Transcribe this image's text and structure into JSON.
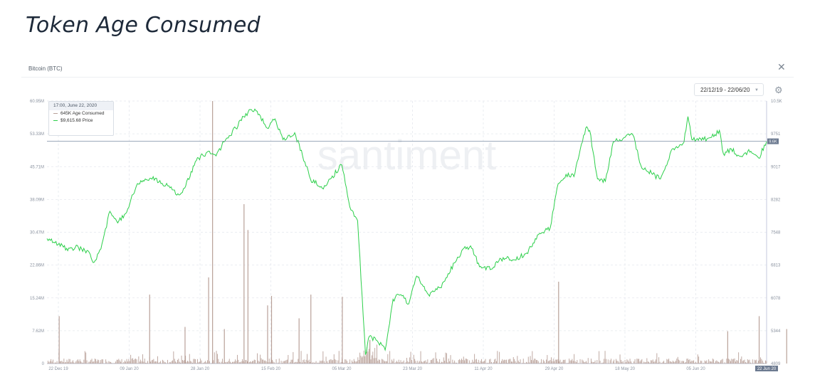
{
  "page": {
    "title": "Token Age Consumed",
    "asset": "Bitcoin (BTC)",
    "date_range": "22/12/19 - 22/06/20",
    "watermark": "santiment"
  },
  "icons": {
    "close": "close-icon",
    "gear": "gear-icon",
    "chevron": "chevron-down-icon"
  },
  "colors": {
    "price": "#2ccf4a",
    "age_consumed": "#b9a199",
    "axis": "#b8becc",
    "grid": "#e5e8ee",
    "crosshair": "#7d8ea6"
  },
  "tooltip": {
    "date": "17:00, June 22, 2020",
    "rows": [
      {
        "value": "645K",
        "label": "Age Consumed",
        "color": "#b9a199"
      },
      {
        "value": "$9,615.68",
        "label": "Price",
        "color": "#2ccf4a"
      }
    ]
  },
  "chart_data": {
    "type": "bar+line",
    "x_tick_labels": [
      "22 Dec 19",
      "09 Jan 20",
      "28 Jan 20",
      "15 Feb 20",
      "05 Mar 20",
      "23 Mar 20",
      "11 Apr 20",
      "29 Apr 20",
      "18 May 20",
      "05 Jun 20",
      "22 Jun 20"
    ],
    "y_left_tick_labels": [
      "0",
      "7.62M",
      "15.24M",
      "22.86M",
      "30.47M",
      "38.09M",
      "45.71M",
      "53.33M",
      "60.95M"
    ],
    "y_right_tick_labels": [
      "4809",
      "5344",
      "6078",
      "6813",
      "7548",
      "8282",
      "9017",
      "9751",
      "10.5K"
    ],
    "y_left_range": [
      0,
      60950000
    ],
    "y_right_range": [
      4809,
      10486
    ],
    "crosshair_price_label": "9.6K",
    "series": [
      {
        "name": "Age Consumed",
        "axis": "left",
        "kind": "bars",
        "spikes": [
          {
            "date": "2019-12-25",
            "value": 11000000
          },
          {
            "date": "2020-01-17",
            "value": 16000000
          },
          {
            "date": "2020-01-26",
            "value": 8500000
          },
          {
            "date": "2020-02-01",
            "value": 20000000
          },
          {
            "date": "2020-02-02",
            "value": 62000000
          },
          {
            "date": "2020-02-05",
            "value": 8000000
          },
          {
            "date": "2020-02-10",
            "value": 37000000
          },
          {
            "date": "2020-02-11",
            "value": 31000000
          },
          {
            "date": "2020-02-16",
            "value": 13500000
          },
          {
            "date": "2020-02-17",
            "value": 15700000
          },
          {
            "date": "2020-02-24",
            "value": 10500000
          },
          {
            "date": "2020-02-27",
            "value": 16000000
          },
          {
            "date": "2020-03-06",
            "value": 15500000
          },
          {
            "date": "2020-03-13",
            "value": 5500000
          },
          {
            "date": "2020-04-30",
            "value": 19000000
          },
          {
            "date": "2020-06-12",
            "value": 7500000
          },
          {
            "date": "2020-06-20",
            "value": 11000000
          },
          {
            "date": "2020-06-27",
            "value": 8000000
          }
        ]
      },
      {
        "name": "Price",
        "axis": "right",
        "kind": "line",
        "points": [
          [
            "2019-12-22",
            7510
          ],
          [
            "2019-12-24",
            7420
          ],
          [
            "2019-12-27",
            7300
          ],
          [
            "2019-12-30",
            7320
          ],
          [
            "2020-01-02",
            7170
          ],
          [
            "2020-01-03",
            7000
          ],
          [
            "2020-01-05",
            7400
          ],
          [
            "2020-01-07",
            8100
          ],
          [
            "2020-01-09",
            7850
          ],
          [
            "2020-01-11",
            8050
          ],
          [
            "2020-01-14",
            8700
          ],
          [
            "2020-01-16",
            8800
          ],
          [
            "2020-01-18",
            8850
          ],
          [
            "2020-01-20",
            8700
          ],
          [
            "2020-01-22",
            8650
          ],
          [
            "2020-01-24",
            8450
          ],
          [
            "2020-01-26",
            8600
          ],
          [
            "2020-01-29",
            9200
          ],
          [
            "2020-02-01",
            9400
          ],
          [
            "2020-02-03",
            9300
          ],
          [
            "2020-02-05",
            9600
          ],
          [
            "2020-02-08",
            9900
          ],
          [
            "2020-02-10",
            10150
          ],
          [
            "2020-02-12",
            10300
          ],
          [
            "2020-02-14",
            10200
          ],
          [
            "2020-02-16",
            9900
          ],
          [
            "2020-02-18",
            10100
          ],
          [
            "2020-02-20",
            9650
          ],
          [
            "2020-02-23",
            9800
          ],
          [
            "2020-02-25",
            9300
          ],
          [
            "2020-02-27",
            8800
          ],
          [
            "2020-03-01",
            8600
          ],
          [
            "2020-03-03",
            8800
          ],
          [
            "2020-03-06",
            9100
          ],
          [
            "2020-03-08",
            8200
          ],
          [
            "2020-03-10",
            7900
          ],
          [
            "2020-03-12",
            5000
          ],
          [
            "2020-03-13",
            5400
          ],
          [
            "2020-03-15",
            5300
          ],
          [
            "2020-03-17",
            5100
          ],
          [
            "2020-03-19",
            6200
          ],
          [
            "2020-03-21",
            6300
          ],
          [
            "2020-03-23",
            6100
          ],
          [
            "2020-03-25",
            6700
          ],
          [
            "2020-03-28",
            6300
          ],
          [
            "2020-03-31",
            6450
          ],
          [
            "2020-04-02",
            6750
          ],
          [
            "2020-04-06",
            7300
          ],
          [
            "2020-04-08",
            7300
          ],
          [
            "2020-04-10",
            6900
          ],
          [
            "2020-04-13",
            6850
          ],
          [
            "2020-04-16",
            7100
          ],
          [
            "2020-04-19",
            7050
          ],
          [
            "2020-04-22",
            7200
          ],
          [
            "2020-04-25",
            7600
          ],
          [
            "2020-04-28",
            7750
          ],
          [
            "2020-04-30",
            8700
          ],
          [
            "2020-05-02",
            8900
          ],
          [
            "2020-05-04",
            8850
          ],
          [
            "2020-05-07",
            9900
          ],
          [
            "2020-05-08",
            9850
          ],
          [
            "2020-05-10",
            8800
          ],
          [
            "2020-05-12",
            8750
          ],
          [
            "2020-05-14",
            9600
          ],
          [
            "2020-05-17",
            9700
          ],
          [
            "2020-05-19",
            9750
          ],
          [
            "2020-05-21",
            9100
          ],
          [
            "2020-05-24",
            8900
          ],
          [
            "2020-05-26",
            8800
          ],
          [
            "2020-05-29",
            9450
          ],
          [
            "2020-06-01",
            9600
          ],
          [
            "2020-06-02",
            10150
          ],
          [
            "2020-06-03",
            9650
          ],
          [
            "2020-06-06",
            9650
          ],
          [
            "2020-06-08",
            9700
          ],
          [
            "2020-06-10",
            9850
          ],
          [
            "2020-06-11",
            9350
          ],
          [
            "2020-06-13",
            9450
          ],
          [
            "2020-06-15",
            9300
          ],
          [
            "2020-06-18",
            9400
          ],
          [
            "2020-06-20",
            9250
          ],
          [
            "2020-06-22",
            9615
          ]
        ]
      }
    ]
  }
}
